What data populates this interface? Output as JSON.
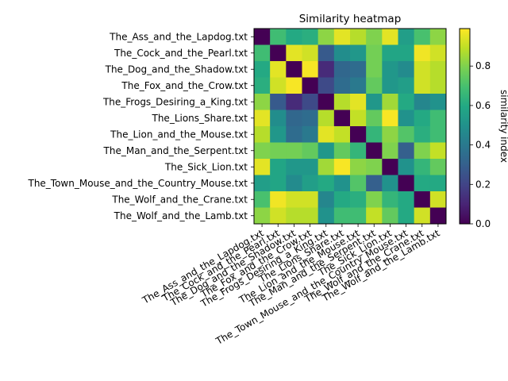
{
  "chart_data": {
    "type": "heatmap",
    "title": "Similarity heatmap",
    "colorbar_label": "similarity index",
    "colorbar_ticks": [
      0.0,
      0.2,
      0.4,
      0.6,
      0.8
    ],
    "colorbar_tick_labels": [
      "0.0",
      "0.2",
      "0.4",
      "0.6",
      "0.8"
    ],
    "vmin": 0.0,
    "vmax": 0.99,
    "colormap": "viridis",
    "labels": [
      "The_Ass_and_the_Lapdog.txt",
      "The_Cock_and_the_Pearl.txt",
      "The_Dog_and_the_Shadow.txt",
      "The_Fox_and_the_Crow.txt",
      "The_Frogs_Desiring_a_King.txt",
      "The_Lions_Share.txt",
      "The_Lion_and_the_Mouse.txt",
      "The_Man_and_the_Serpent.txt",
      "The_Sick_Lion.txt",
      "The_Town_Mouse_and_the_Country_Mouse.txt",
      "The_Wolf_and_the_Crane.txt",
      "The_Wolf_and_the_Lamb.txt"
    ],
    "matrix": [
      [
        0.0,
        0.68,
        0.6,
        0.62,
        0.82,
        0.95,
        0.88,
        0.8,
        0.95,
        0.55,
        0.7,
        0.82
      ],
      [
        0.68,
        0.0,
        0.95,
        0.92,
        0.28,
        0.48,
        0.52,
        0.78,
        0.58,
        0.58,
        0.97,
        0.92
      ],
      [
        0.6,
        0.95,
        0.0,
        0.98,
        0.12,
        0.33,
        0.35,
        0.78,
        0.52,
        0.47,
        0.92,
        0.88
      ],
      [
        0.62,
        0.92,
        0.98,
        0.0,
        0.22,
        0.35,
        0.4,
        0.75,
        0.52,
        0.55,
        0.92,
        0.88
      ],
      [
        0.82,
        0.28,
        0.12,
        0.22,
        0.0,
        0.88,
        0.95,
        0.52,
        0.85,
        0.6,
        0.45,
        0.5
      ],
      [
        0.95,
        0.48,
        0.33,
        0.35,
        0.88,
        0.0,
        0.9,
        0.75,
        0.98,
        0.5,
        0.6,
        0.68
      ],
      [
        0.88,
        0.52,
        0.35,
        0.4,
        0.95,
        0.9,
        0.0,
        0.65,
        0.82,
        0.72,
        0.62,
        0.68
      ],
      [
        0.8,
        0.78,
        0.78,
        0.75,
        0.52,
        0.75,
        0.65,
        0.0,
        0.8,
        0.3,
        0.8,
        0.9
      ],
      [
        0.95,
        0.58,
        0.52,
        0.52,
        0.85,
        0.98,
        0.82,
        0.8,
        0.0,
        0.5,
        0.65,
        0.75
      ],
      [
        0.55,
        0.58,
        0.47,
        0.55,
        0.6,
        0.5,
        0.72,
        0.3,
        0.5,
        0.0,
        0.6,
        0.6
      ],
      [
        0.7,
        0.97,
        0.92,
        0.92,
        0.45,
        0.6,
        0.62,
        0.8,
        0.65,
        0.6,
        0.0,
        0.92
      ],
      [
        0.82,
        0.92,
        0.88,
        0.88,
        0.5,
        0.68,
        0.68,
        0.9,
        0.75,
        0.6,
        0.92,
        0.0
      ]
    ]
  }
}
